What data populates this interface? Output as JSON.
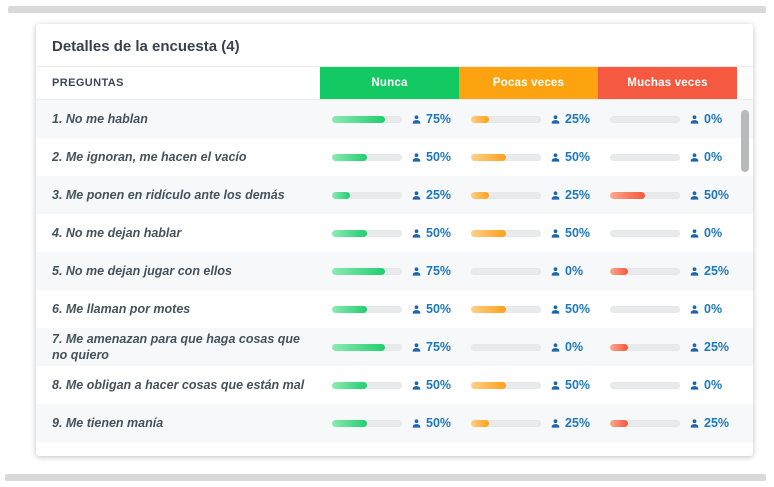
{
  "page": {
    "title": "Detalles de la encuesta (4)"
  },
  "table": {
    "questions_header": "PREGUNTAS",
    "columns": [
      {
        "label": "Nunca",
        "header_color": "#12c964",
        "bar_color": "#21ce6e",
        "bar_color_light": "#8ceab4"
      },
      {
        "label": "Pocas veces",
        "header_color": "#fda30f",
        "bar_color": "#ffa117",
        "bar_color_light": "#ffd08a"
      },
      {
        "label": "Muchas veces",
        "header_color": "#f5593f",
        "bar_color": "#f4593b",
        "bar_color_light": "#ffa68f"
      }
    ],
    "rows": [
      {
        "question": "1. No me hablan",
        "values": [
          75,
          25,
          0
        ]
      },
      {
        "question": "2. Me ignoran, me hacen el vacío",
        "values": [
          50,
          50,
          0
        ]
      },
      {
        "question": "3. Me ponen en ridículo ante los demás",
        "values": [
          25,
          25,
          50
        ]
      },
      {
        "question": "4. No me dejan hablar",
        "values": [
          50,
          50,
          0
        ]
      },
      {
        "question": "5. No me dejan jugar con ellos",
        "values": [
          75,
          0,
          25
        ]
      },
      {
        "question": "6. Me llaman por motes",
        "values": [
          50,
          50,
          0
        ]
      },
      {
        "question": "7. Me amenazan para que haga cosas que no quiero",
        "values": [
          75,
          0,
          25
        ]
      },
      {
        "question": "8. Me obligan a hacer cosas que están mal",
        "values": [
          50,
          50,
          0
        ]
      },
      {
        "question": "9. Me tienen manía",
        "values": [
          50,
          25,
          25
        ]
      }
    ],
    "percent_suffix": "%"
  },
  "colors": {
    "percent_text": "#1d78be",
    "person_icon": "#1b66ad",
    "bar_track": "#e9eaec",
    "divider": "#d9d9d9"
  }
}
